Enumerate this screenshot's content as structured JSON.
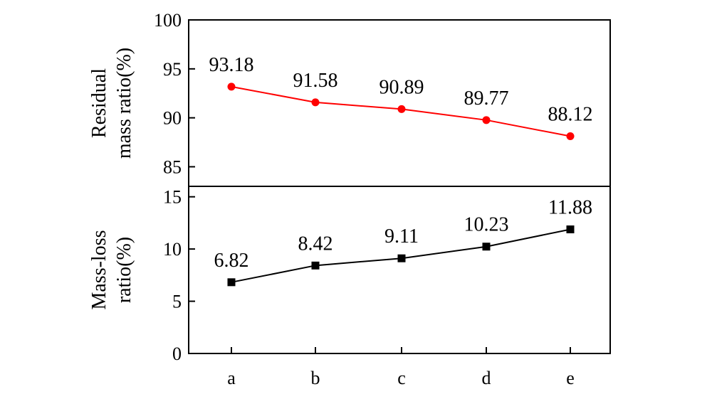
{
  "chart_data": [
    {
      "type": "line",
      "ylabel": [
        "Residual",
        "mass ratio(%)"
      ],
      "categories": [
        "a",
        "b",
        "c",
        "d",
        "e"
      ],
      "values": [
        93.18,
        91.58,
        90.89,
        89.77,
        88.12
      ],
      "data_labels": [
        "93.18",
        "91.58",
        "90.89",
        "89.77",
        "88.12"
      ],
      "ylim": [
        83,
        100
      ],
      "yticks": [
        85,
        90,
        95,
        100
      ],
      "marker": "circle",
      "color": "#ff0000",
      "grid": false
    },
    {
      "type": "line",
      "ylabel": [
        "Mass-loss",
        "ratio(%)"
      ],
      "categories": [
        "a",
        "b",
        "c",
        "d",
        "e"
      ],
      "values": [
        6.82,
        8.42,
        9.11,
        10.23,
        11.88
      ],
      "data_labels": [
        "6.82",
        "8.42",
        "9.11",
        "10.23",
        "11.88"
      ],
      "ylim": [
        0,
        16
      ],
      "yticks": [
        0,
        5,
        10,
        15
      ],
      "marker": "square",
      "color": "#000000",
      "grid": false
    }
  ]
}
